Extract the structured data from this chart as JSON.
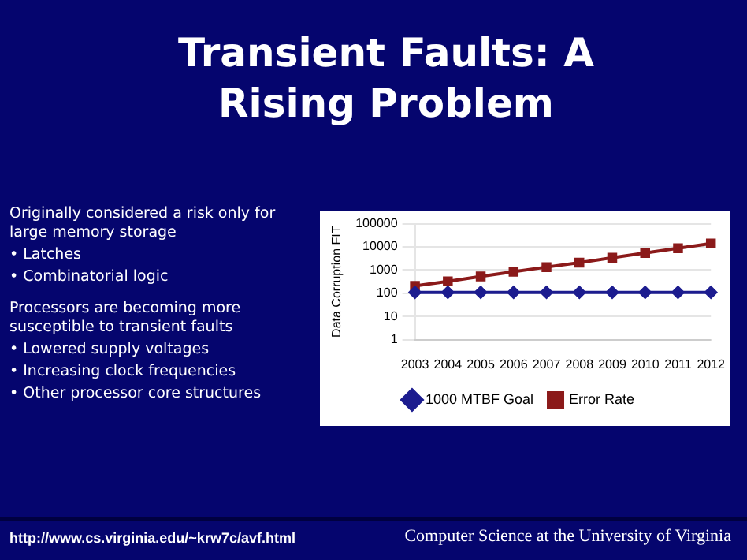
{
  "chart_data": {
    "type": "line",
    "title": "Transient Faults: A Rising Problem",
    "ylabel": "Data Corruption FIT",
    "categories": [
      "2003",
      "2004",
      "2005",
      "2006",
      "2007",
      "2008",
      "2009",
      "2010",
      "2011",
      "2012"
    ],
    "series": [
      {
        "name": "1000 MTBF Goal",
        "color": "#1c1c8f",
        "marker": "diamond",
        "values": [
          110,
          110,
          110,
          110,
          110,
          110,
          110,
          110,
          110,
          110
        ]
      },
      {
        "name": "Error Rate",
        "color": "#8b1a1a",
        "marker": "square",
        "values": [
          210,
          330,
          530,
          850,
          1350,
          2100,
          3400,
          5500,
          8800,
          14000
        ]
      }
    ],
    "log": "y",
    "ylim": [
      1,
      100000
    ],
    "yticks": [
      1,
      10,
      100,
      1000,
      10000,
      100000
    ],
    "grid": "y",
    "legend": "bottom",
    "annotations": [
      "Originally considered a risk only for large memory storage",
      "• Latches",
      "• Combinatorial logic",
      "Processors are becoming more susceptible to transient faults",
      "• Lowered supply voltages",
      "• Increasing clock frequencies",
      "• Other processor core structures",
      "http://www.cs.virginia.edu/~krw7c/avf.html",
      "Computer Science at the University of Virginia"
    ]
  }
}
